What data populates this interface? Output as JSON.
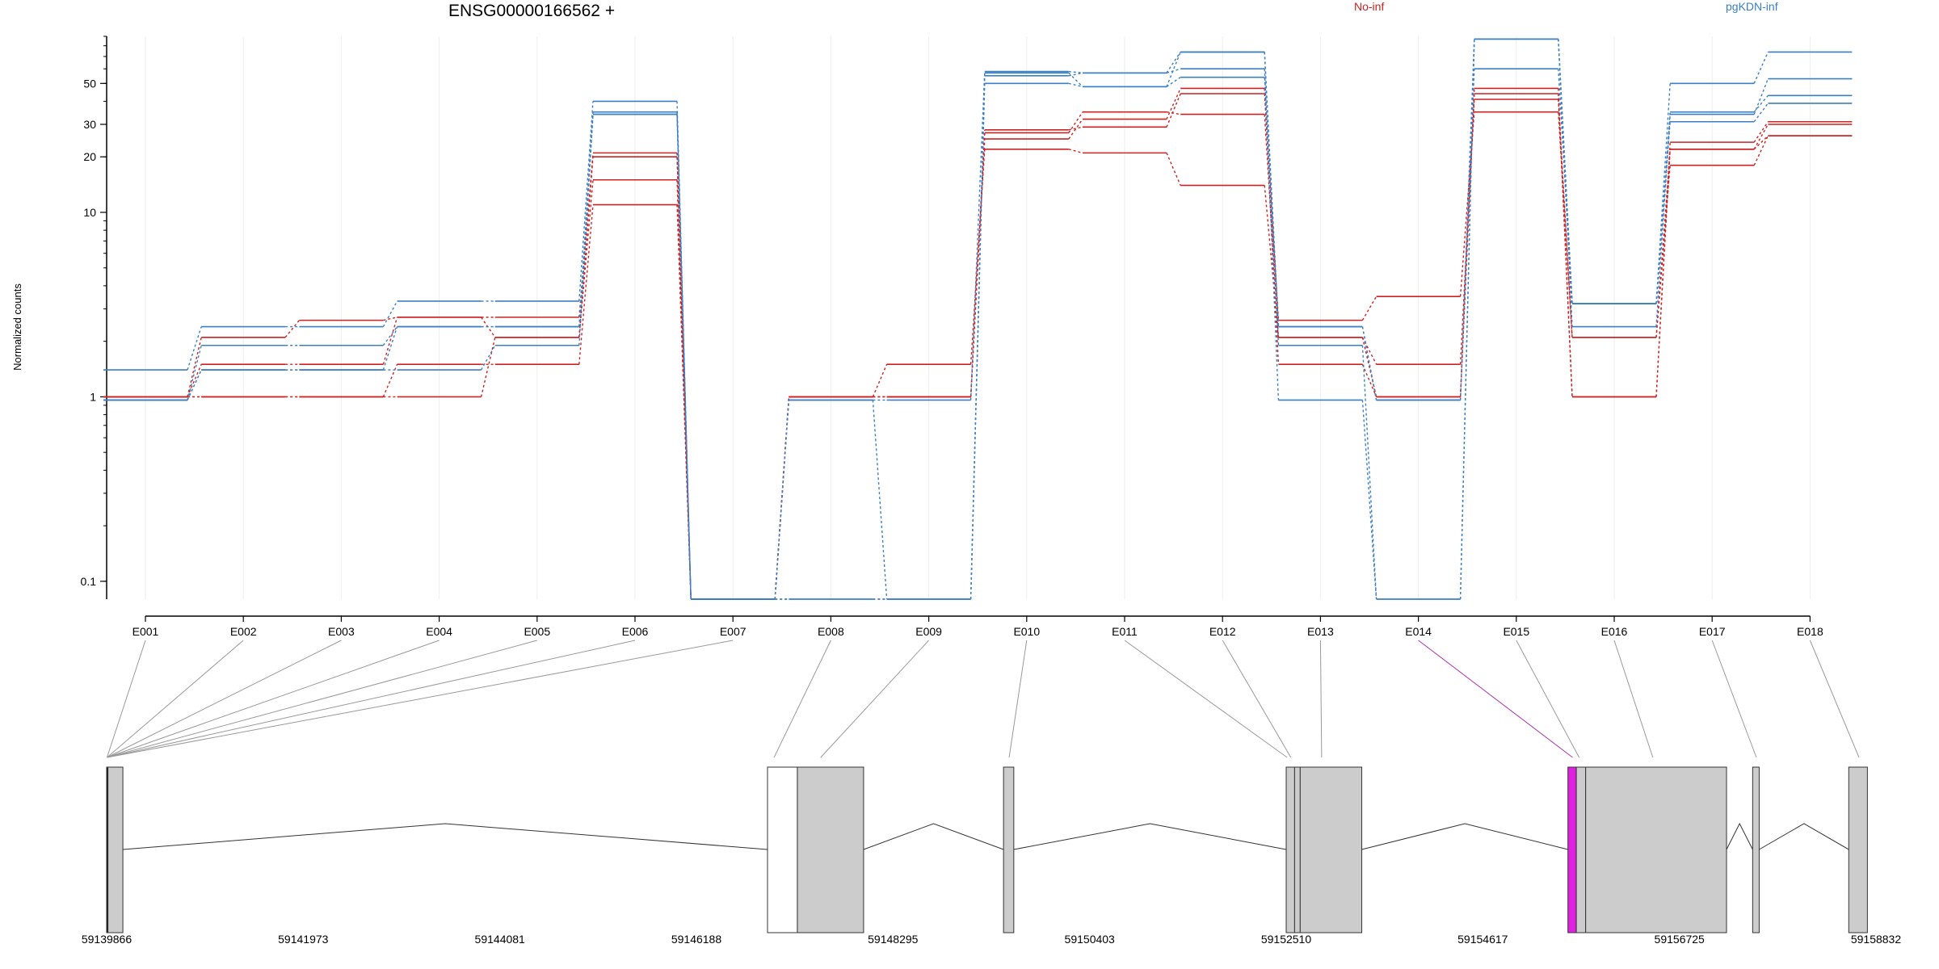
{
  "title": "ENSG00000166562 +",
  "legend": [
    {
      "name": "No-inf",
      "color": "#cc2222"
    },
    {
      "name": "pgKDN-inf",
      "color": "#3b7fc4"
    }
  ],
  "chart_data": {
    "type": "line",
    "title": "ENSG00000166562 +",
    "xlabel": "",
    "ylabel": "Normalized counts",
    "scale": "log",
    "yticks": [
      "0.1",
      "1",
      "10",
      "20",
      "30",
      "50"
    ],
    "ytick_values": [
      0.1,
      1,
      10,
      20,
      30,
      50
    ],
    "ylim": [
      0.08,
      90
    ],
    "grid": "vertical",
    "legend_placement": "top",
    "categories": [
      "E001",
      "E002",
      "E003",
      "E004",
      "E005",
      "E006",
      "E007",
      "E008",
      "E009",
      "E010",
      "E011",
      "E012",
      "E013",
      "E014",
      "E015",
      "E016",
      "E017",
      "E018"
    ],
    "series": [
      {
        "group": "No-inf",
        "values": [
          1.0,
          2.1,
          2.6,
          2.7,
          2.1,
          15,
          0.08,
          1.0,
          1.0,
          25,
          32,
          47,
          1.5,
          1.0,
          44,
          1.0,
          24,
          31
        ]
      },
      {
        "group": "No-inf",
        "values": [
          1.0,
          1.0,
          1.0,
          1.5,
          1.5,
          11,
          0.08,
          1.0,
          1.5,
          22,
          21,
          14,
          2.1,
          1.0,
          47,
          1.0,
          22,
          30
        ]
      },
      {
        "group": "No-inf",
        "values": [
          1.0,
          1.5,
          1.5,
          2.7,
          2.7,
          21,
          0.08,
          1.0,
          1.0,
          28,
          29,
          44,
          2.6,
          3.5,
          35,
          2.1,
          18,
          26
        ]
      },
      {
        "group": "No-inf",
        "values": [
          1.0,
          1.0,
          1.0,
          1.0,
          2.1,
          20,
          0.08,
          1.0,
          1.0,
          27,
          35,
          34,
          2.1,
          1.5,
          41,
          2.1,
          22,
          26
        ]
      },
      {
        "group": "pgKDN-inf",
        "values": [
          1.4,
          2.4,
          2.4,
          3.3,
          3.3,
          40,
          0.08,
          0.96,
          0.96,
          58,
          57,
          74,
          2.4,
          0.96,
          60,
          3.2,
          50,
          74
        ]
      },
      {
        "group": "pgKDN-inf",
        "values": [
          0.96,
          1.4,
          1.4,
          1.4,
          1.9,
          34,
          0.08,
          0.96,
          0.08,
          57,
          48,
          74,
          1.9,
          0.08,
          87,
          2.4,
          34,
          53
        ]
      },
      {
        "group": "pgKDN-inf",
        "values": [
          0.96,
          1.9,
          1.9,
          2.4,
          2.4,
          35,
          0.08,
          0.08,
          0.08,
          55,
          57,
          60,
          0.96,
          0.08,
          87,
          3.2,
          35,
          43
        ]
      },
      {
        "group": "pgKDN-inf",
        "values": [
          0.96,
          1.4,
          1.4,
          2.4,
          2.4,
          34,
          0.08,
          0.08,
          0.08,
          50,
          48,
          54,
          2.4,
          0.96,
          87,
          3.2,
          31,
          39
        ]
      }
    ],
    "genomic_axis": {
      "ticks": [
        "59139866",
        "59141973",
        "59144081",
        "59146188",
        "59148295",
        "59150403",
        "59152510",
        "59154617",
        "59156725",
        "59158832"
      ],
      "tick_values": [
        59139866,
        59141973,
        59144081,
        59146188,
        59148295,
        59150403,
        59152510,
        59154617,
        59156725,
        59158832
      ],
      "range": [
        59139866,
        59158832
      ],
      "exons": [
        {
          "start": 59139866,
          "end": 59139880,
          "fill": "#000000"
        },
        {
          "start": 59139880,
          "end": 59140040,
          "fill": "#cccccc"
        },
        {
          "start": 59146950,
          "end": 59147270,
          "fill": "#ffffff"
        },
        {
          "start": 59147270,
          "end": 59147980,
          "fill": "#cccccc"
        },
        {
          "start": 59149480,
          "end": 59149590,
          "fill": "#cccccc"
        },
        {
          "start": 59152510,
          "end": 59152600,
          "fill": "#cccccc"
        },
        {
          "start": 59152600,
          "end": 59152660,
          "fill": "#cccccc"
        },
        {
          "start": 59152660,
          "end": 59153320,
          "fill": "#cccccc"
        },
        {
          "start": 59155530,
          "end": 59155620,
          "fill": "#e020e0"
        },
        {
          "start": 59155620,
          "end": 59155720,
          "fill": "#cccccc"
        },
        {
          "start": 59155720,
          "end": 59157230,
          "fill": "#cccccc"
        },
        {
          "start": 59157510,
          "end": 59157580,
          "fill": "#cccccc"
        },
        {
          "start": 59158540,
          "end": 59158740,
          "fill": "#cccccc"
        }
      ],
      "introns": [
        [
          59140040,
          59146950
        ],
        [
          59147980,
          59149480
        ],
        [
          59149590,
          59152510
        ],
        [
          59153320,
          59155530
        ],
        [
          59157230,
          59157510
        ],
        [
          59157580,
          59158540
        ]
      ],
      "exon_links": [
        {
          "bin": "E001",
          "pos": 59139870,
          "color": "#999999"
        },
        {
          "bin": "E002",
          "pos": 59139870,
          "color": "#999999"
        },
        {
          "bin": "E003",
          "pos": 59139870,
          "color": "#999999"
        },
        {
          "bin": "E004",
          "pos": 59139870,
          "color": "#999999"
        },
        {
          "bin": "E005",
          "pos": 59139870,
          "color": "#999999"
        },
        {
          "bin": "E006",
          "pos": 59139870,
          "color": "#999999"
        },
        {
          "bin": "E007",
          "pos": 59139870,
          "color": "#999999"
        },
        {
          "bin": "E008",
          "pos": 59147020,
          "color": "#999999"
        },
        {
          "bin": "E009",
          "pos": 59147520,
          "color": "#999999"
        },
        {
          "bin": "E010",
          "pos": 59149540,
          "color": "#999999"
        },
        {
          "bin": "E011",
          "pos": 59152520,
          "color": "#999999"
        },
        {
          "bin": "E012",
          "pos": 59152560,
          "color": "#999999"
        },
        {
          "bin": "E013",
          "pos": 59152890,
          "color": "#999999"
        },
        {
          "bin": "E014",
          "pos": 59155580,
          "color": "#aa33aa"
        },
        {
          "bin": "E015",
          "pos": 59155650,
          "color": "#999999"
        },
        {
          "bin": "E016",
          "pos": 59156440,
          "color": "#999999"
        },
        {
          "bin": "E017",
          "pos": 59157550,
          "color": "#999999"
        },
        {
          "bin": "E018",
          "pos": 59158650,
          "color": "#999999"
        }
      ]
    }
  }
}
